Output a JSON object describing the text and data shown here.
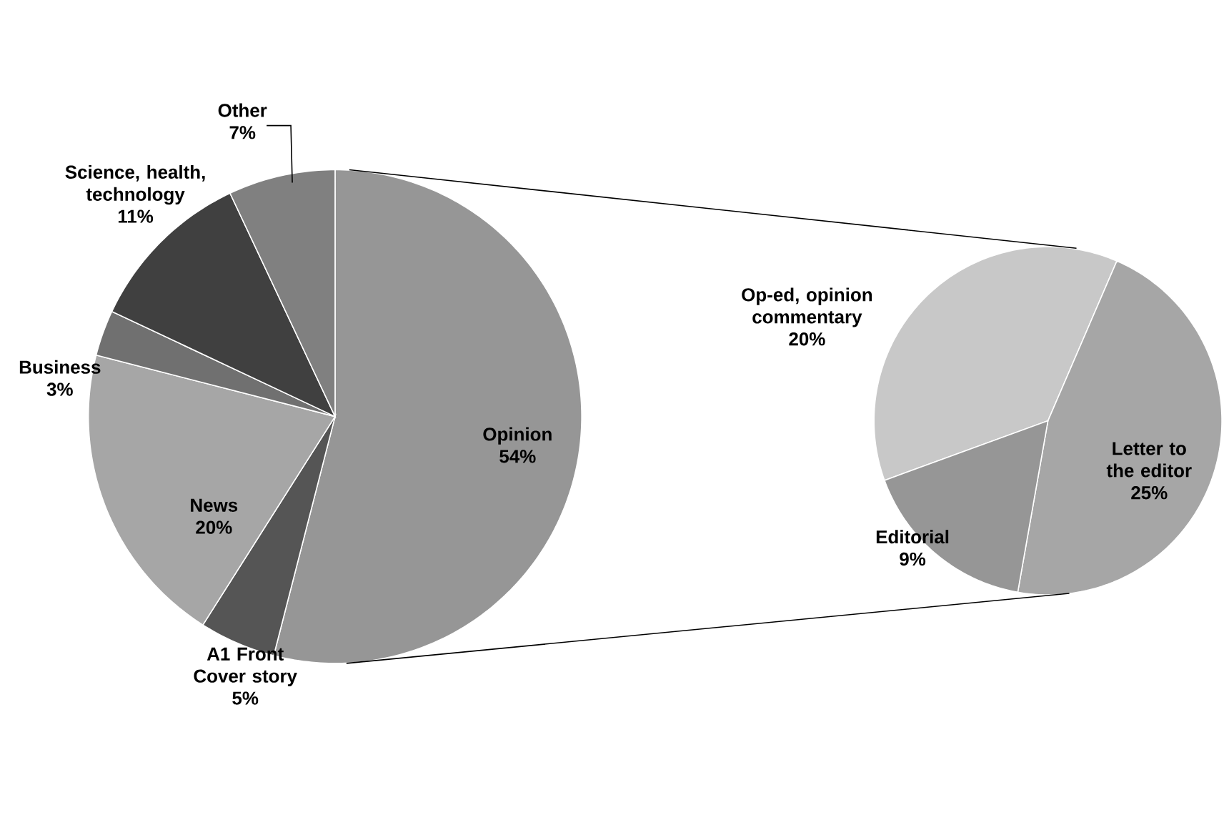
{
  "chart_data": [
    {
      "type": "pie",
      "categories": [
        "Opinion",
        "A1 Front Cover story",
        "News",
        "Business",
        "Science, health, technology",
        "Other"
      ],
      "values": [
        54,
        5,
        20,
        3,
        11,
        7
      ],
      "value_labels": [
        "54%",
        "5%",
        "20%",
        "3%",
        "11%",
        "7%"
      ],
      "colors": [
        "#969696",
        "#555555",
        "#a6a6a6",
        "#707070",
        "#404040",
        "#808080"
      ]
    },
    {
      "type": "pie",
      "categories": [
        "Op-ed, opinion commentary",
        "Letter to the editor",
        "Editorial"
      ],
      "values": [
        20,
        25,
        9
      ],
      "value_labels": [
        "20%",
        "25%",
        "9%"
      ],
      "colors": [
        "#c8c8c8",
        "#a6a6a6",
        "#969696"
      ]
    }
  ]
}
